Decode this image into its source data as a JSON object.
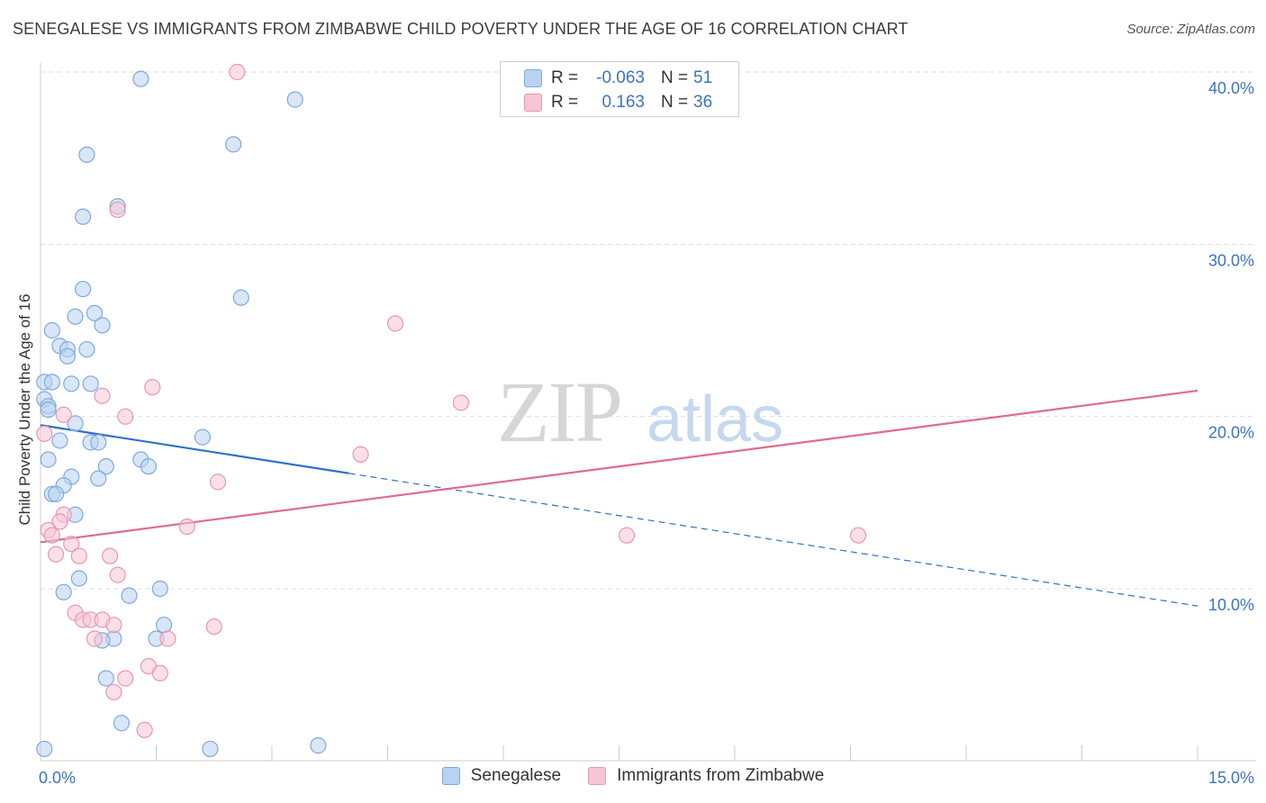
{
  "title": "SENEGALESE VS IMMIGRANTS FROM ZIMBABWE CHILD POVERTY UNDER THE AGE OF 16 CORRELATION CHART",
  "source": "Source: ZipAtlas.com",
  "watermark": {
    "zip": "ZIP",
    "atlas": "atlas"
  },
  "legend": {
    "rows": [
      {
        "r_label": "R =",
        "r_value": "-0.063",
        "n_label": "N =",
        "n_value": "51"
      },
      {
        "r_label": "R =",
        "r_value": "0.163",
        "n_label": "N =",
        "n_value": "36"
      }
    ]
  },
  "colors": {
    "blue_fill": "#b8d2f2",
    "blue_stroke": "#7ea9de",
    "blue_line": "#2e6fcc",
    "pink_fill": "#f7c5d5",
    "pink_stroke": "#e996b1",
    "pink_line": "#e06a92",
    "tick_text": "#3b73c4",
    "grid": "#dddddd"
  },
  "chart_data": {
    "type": "scatter",
    "title": "SENEGALESE VS IMMIGRANTS FROM ZIMBABWE CHILD POVERTY UNDER THE AGE OF 16 CORRELATION CHART",
    "xlabel": "",
    "ylabel": "Child Poverty Under the Age of 16",
    "xlim": [
      0,
      15
    ],
    "ylim": [
      0,
      41
    ],
    "x_tick_labels": [
      "0.0%",
      "15.0%"
    ],
    "y_ticks": [
      10,
      20,
      30,
      40
    ],
    "y_tick_labels": [
      "10.0%",
      "20.0%",
      "30.0%",
      "40.0%"
    ],
    "legend_position": "bottom-center",
    "series": [
      {
        "name": "Senegalese",
        "color": "blue",
        "points": [
          [
            1.3,
            39.6
          ],
          [
            3.3,
            38.4
          ],
          [
            0.6,
            35.2
          ],
          [
            2.5,
            35.8
          ],
          [
            1.0,
            32.2
          ],
          [
            0.55,
            31.6
          ],
          [
            0.55,
            27.4
          ],
          [
            2.6,
            26.9
          ],
          [
            0.45,
            25.8
          ],
          [
            0.7,
            26.0
          ],
          [
            0.8,
            25.3
          ],
          [
            0.15,
            25.0
          ],
          [
            0.25,
            24.1
          ],
          [
            0.35,
            23.9
          ],
          [
            0.6,
            23.9
          ],
          [
            0.35,
            23.5
          ],
          [
            0.05,
            22.0
          ],
          [
            0.15,
            22.0
          ],
          [
            0.4,
            21.9
          ],
          [
            0.65,
            21.9
          ],
          [
            0.05,
            21.0
          ],
          [
            0.1,
            20.6
          ],
          [
            0.1,
            20.4
          ],
          [
            0.45,
            19.6
          ],
          [
            0.25,
            18.6
          ],
          [
            0.65,
            18.5
          ],
          [
            0.75,
            18.5
          ],
          [
            2.1,
            18.8
          ],
          [
            0.1,
            17.5
          ],
          [
            1.3,
            17.5
          ],
          [
            1.4,
            17.1
          ],
          [
            0.85,
            17.1
          ],
          [
            0.4,
            16.5
          ],
          [
            0.75,
            16.4
          ],
          [
            0.3,
            16.0
          ],
          [
            0.15,
            15.5
          ],
          [
            0.2,
            15.5
          ],
          [
            0.45,
            14.3
          ],
          [
            0.5,
            10.6
          ],
          [
            0.3,
            9.8
          ],
          [
            1.15,
            9.6
          ],
          [
            1.55,
            10.0
          ],
          [
            1.6,
            7.9
          ],
          [
            0.95,
            7.1
          ],
          [
            0.8,
            7.0
          ],
          [
            1.5,
            7.1
          ],
          [
            0.85,
            4.8
          ],
          [
            1.05,
            2.2
          ],
          [
            2.2,
            0.7
          ],
          [
            3.6,
            0.9
          ],
          [
            0.05,
            0.7
          ]
        ]
      },
      {
        "name": "Immigrants from Zimbabwe",
        "color": "pink",
        "points": [
          [
            2.55,
            40.0
          ],
          [
            1.0,
            32.0
          ],
          [
            4.6,
            25.4
          ],
          [
            1.45,
            21.7
          ],
          [
            0.8,
            21.2
          ],
          [
            5.45,
            20.8
          ],
          [
            0.3,
            20.1
          ],
          [
            1.1,
            20.0
          ],
          [
            0.05,
            19.0
          ],
          [
            4.15,
            17.8
          ],
          [
            2.3,
            16.2
          ],
          [
            0.3,
            14.3
          ],
          [
            0.25,
            13.9
          ],
          [
            1.9,
            13.6
          ],
          [
            0.1,
            13.4
          ],
          [
            0.15,
            13.1
          ],
          [
            7.6,
            13.1
          ],
          [
            10.6,
            13.1
          ],
          [
            0.4,
            12.6
          ],
          [
            0.2,
            12.0
          ],
          [
            0.5,
            11.9
          ],
          [
            0.9,
            11.9
          ],
          [
            1.0,
            10.8
          ],
          [
            0.45,
            8.6
          ],
          [
            0.55,
            8.2
          ],
          [
            0.65,
            8.2
          ],
          [
            0.8,
            8.2
          ],
          [
            0.95,
            7.9
          ],
          [
            2.25,
            7.8
          ],
          [
            0.7,
            7.1
          ],
          [
            1.65,
            7.1
          ],
          [
            1.4,
            5.5
          ],
          [
            1.55,
            5.1
          ],
          [
            1.1,
            4.8
          ],
          [
            0.95,
            4.0
          ],
          [
            1.35,
            1.8
          ]
        ]
      }
    ],
    "trend_lines": [
      {
        "series": "Senegalese",
        "x0": 0,
        "y0": 19.5,
        "x1": 15,
        "y1": 9.0,
        "solid_until_x": 4.0
      },
      {
        "series": "Immigrants from Zimbabwe",
        "x0": 0,
        "y0": 12.7,
        "x1": 15,
        "y1": 21.5
      }
    ]
  }
}
